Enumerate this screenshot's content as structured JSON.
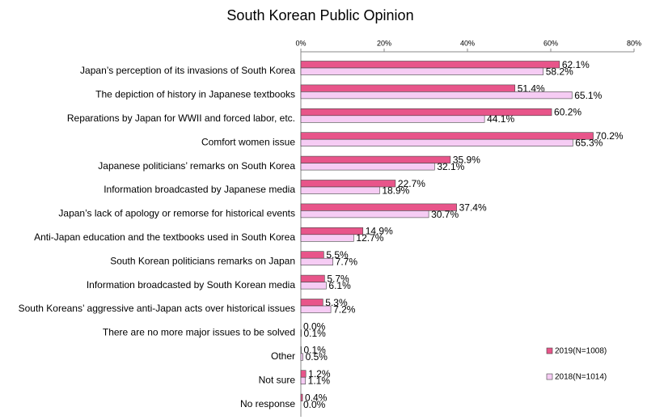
{
  "chart_data": {
    "type": "hbar",
    "title": "South Korean Public Opinion",
    "categories": [
      "Japan’s perception of its invasions of South Korea",
      "The depiction of history in Japanese textbooks",
      "Reparations by Japan for WWII and forced labor, etc.",
      "Comfort women issue",
      "Japanese politicians’ remarks on  South Korea",
      "Information broadcasted by Japanese media",
      "Japan’s lack of apology or remorse for historical events",
      "Anti-Japan education and the textbooks used in South Korea",
      "South Korean politicians remarks on Japan",
      "Information broadcasted by South Korean media",
      "South Koreans’ aggressive anti-Japan acts over historical issues",
      "There are no more major issues to be solved",
      "Other",
      "Not sure",
      "No response"
    ],
    "series": [
      {
        "name": "2019(N=1008)",
        "color": "#e8558a",
        "values": [
          62.1,
          51.4,
          60.2,
          70.2,
          35.9,
          22.7,
          37.4,
          14.9,
          5.5,
          5.7,
          5.3,
          0.0,
          0.1,
          1.2,
          0.4
        ],
        "value_labels": [
          "62.1%",
          "51.4%",
          "60.2%",
          "70.2%",
          "35.9%",
          "22.7%",
          "37.4%",
          "14.9%",
          "5.5%",
          "5.7%",
          "5.3%",
          "0.0%",
          "0.1%",
          "1.2%",
          "0.4%"
        ]
      },
      {
        "name": "2018(N=1014)",
        "color": "#f6ccf4",
        "values": [
          58.2,
          65.1,
          44.1,
          65.3,
          32.1,
          18.9,
          30.7,
          12.7,
          7.7,
          6.1,
          7.2,
          0.1,
          0.5,
          1.1,
          0.0
        ],
        "value_labels": [
          "58.2%",
          "65.1%",
          "44.1%",
          "65.3%",
          "32.1%",
          "18.9%",
          "30.7%",
          "12.7%",
          "7.7%",
          "6.1%",
          "7.2%",
          "0.1%",
          "0.5%",
          "1.1%",
          "0.0%"
        ]
      }
    ],
    "xlim": [
      0,
      80
    ],
    "xticks": [
      {
        "value": 0,
        "label": "0%"
      },
      {
        "value": 20,
        "label": "20%"
      },
      {
        "value": 40,
        "label": "40%"
      },
      {
        "value": 60,
        "label": "60%"
      },
      {
        "value": 80,
        "label": "80%"
      }
    ],
    "grid": false
  }
}
